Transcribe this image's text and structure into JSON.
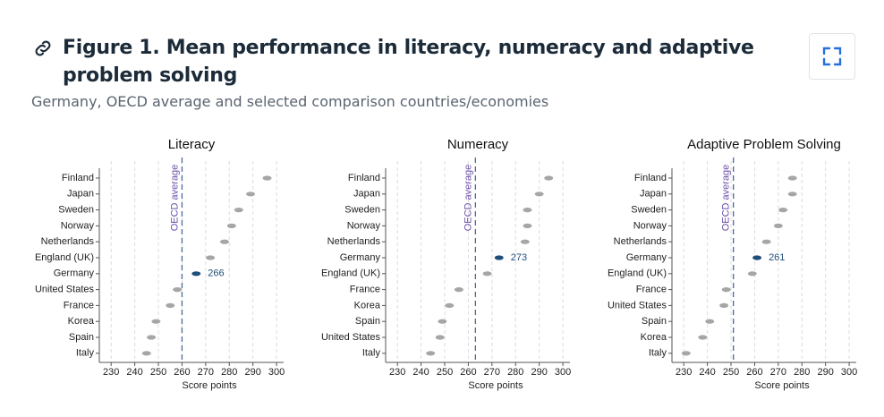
{
  "title": "Figure 1. Mean performance in literacy, numeracy and adaptive problem solving",
  "subtitle": "Germany, OECD average and selected comparison countries/economies",
  "chart_data": [
    {
      "type": "dot",
      "title": "Literacy",
      "x_label": "Score points",
      "categories": [
        "Finland",
        "Japan",
        "Sweden",
        "Norway",
        "Netherlands",
        "England (UK)",
        "Germany",
        "United States",
        "France",
        "Korea",
        "Spain",
        "Italy"
      ],
      "values": [
        296,
        289,
        284,
        281,
        278,
        272,
        266,
        258,
        255,
        249,
        247,
        245
      ],
      "value_labels": [
        null,
        null,
        null,
        null,
        null,
        null,
        "266",
        null,
        null,
        null,
        null,
        null
      ],
      "colors": [
        "#a6a6a6",
        "#a6a6a6",
        "#a6a6a6",
        "#a6a6a6",
        "#a6a6a6",
        "#a6a6a6",
        "#1f4e79",
        "#a6a6a6",
        "#a6a6a6",
        "#a6a6a6",
        "#a6a6a6",
        "#a6a6a6"
      ],
      "reference_line": {
        "value": 260,
        "label": "OECD average",
        "color": "#6b4fa8"
      },
      "xlim": [
        225,
        303
      ],
      "xticks": [
        230,
        240,
        250,
        260,
        270,
        280,
        290,
        300
      ],
      "grid": true
    },
    {
      "type": "dot",
      "title": "Numeracy",
      "x_label": "Score points",
      "categories": [
        "Finland",
        "Japan",
        "Sweden",
        "Norway",
        "Netherlands",
        "Germany",
        "England (UK)",
        "France",
        "Korea",
        "Spain",
        "United States",
        "Italy"
      ],
      "values": [
        294,
        290,
        285,
        285,
        284,
        273,
        268,
        256,
        252,
        249,
        248,
        244
      ],
      "value_labels": [
        null,
        null,
        null,
        null,
        null,
        "273",
        null,
        null,
        null,
        null,
        null,
        null
      ],
      "colors": [
        "#a6a6a6",
        "#a6a6a6",
        "#a6a6a6",
        "#a6a6a6",
        "#a6a6a6",
        "#1f4e79",
        "#a6a6a6",
        "#a6a6a6",
        "#a6a6a6",
        "#a6a6a6",
        "#a6a6a6",
        "#a6a6a6"
      ],
      "reference_line": {
        "value": 263,
        "label": "OECD average",
        "color": "#6b4fa8"
      },
      "xlim": [
        225,
        303
      ],
      "xticks": [
        230,
        240,
        250,
        260,
        270,
        280,
        290,
        300
      ],
      "grid": true
    },
    {
      "type": "dot",
      "title": "Adaptive Problem Solving",
      "x_label": "Score points",
      "categories": [
        "Finland",
        "Japan",
        "Sweden",
        "Norway",
        "Netherlands",
        "Germany",
        "England (UK)",
        "France",
        "United States",
        "Spain",
        "Korea",
        "Italy"
      ],
      "values": [
        276,
        276,
        272,
        270,
        265,
        261,
        259,
        248,
        247,
        241,
        238,
        231
      ],
      "value_labels": [
        null,
        null,
        null,
        null,
        null,
        "261",
        null,
        null,
        null,
        null,
        null,
        null
      ],
      "colors": [
        "#a6a6a6",
        "#a6a6a6",
        "#a6a6a6",
        "#a6a6a6",
        "#a6a6a6",
        "#1f4e79",
        "#a6a6a6",
        "#a6a6a6",
        "#a6a6a6",
        "#a6a6a6",
        "#a6a6a6",
        "#a6a6a6"
      ],
      "reference_line": {
        "value": 251,
        "label": "OECD average",
        "color": "#6b4fa8"
      },
      "xlim": [
        225,
        303
      ],
      "xticks": [
        230,
        240,
        250,
        260,
        270,
        280,
        290,
        300
      ],
      "grid": true
    }
  ]
}
